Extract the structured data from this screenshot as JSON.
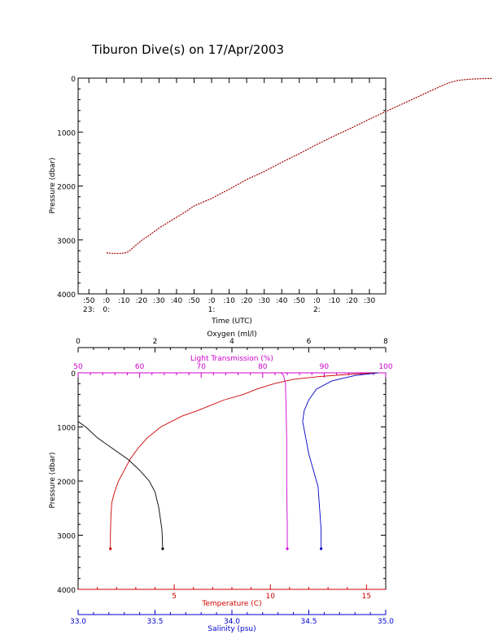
{
  "title": "Tiburon Dive(s) on 17/Apr/2003",
  "colors": {
    "axis": "#000000",
    "temperature": "#d00000",
    "salinity": "#0000cc",
    "light": "#cc00cc",
    "oxygen": "#000000",
    "track": "#a00000"
  },
  "chart_data": [
    {
      "type": "line",
      "ylabel": "Pressure (dbar)",
      "xlabel": "Time (UTC)",
      "ylim": [
        4000,
        0
      ],
      "y_ticks": [
        "0",
        "1000",
        "2000",
        "3000",
        "4000"
      ],
      "x_tick_minutes": [
        ":50",
        ":0",
        ":10",
        ":20",
        ":30",
        ":40",
        ":50",
        ":0",
        ":10",
        ":20",
        ":30",
        ":40",
        ":50",
        ":0",
        ":10",
        ":20",
        ":30"
      ],
      "x_tick_hours": [
        {
          "label": "23:",
          "index": 0
        },
        {
          "label": "0:",
          "index": 1
        },
        {
          "label": "1:",
          "index": 7
        },
        {
          "label": "2:",
          "index": 13
        }
      ],
      "series": [
        {
          "x_minutes_after_2350": [
            10,
            13,
            18,
            20,
            22,
            24,
            26,
            30,
            35,
            40,
            45,
            50,
            55,
            60,
            70,
            80,
            90,
            100,
            110,
            120,
            130,
            140,
            150,
            160,
            170,
            180,
            190,
            200,
            205,
            210,
            215,
            220,
            225,
            230
          ],
          "y": [
            3240,
            3250,
            3250,
            3245,
            3225,
            3180,
            3120,
            3010,
            2900,
            2780,
            2680,
            2580,
            2480,
            2370,
            2230,
            2060,
            1880,
            1730,
            1560,
            1400,
            1230,
            1070,
            920,
            760,
            610,
            460,
            310,
            160,
            90,
            45,
            25,
            15,
            8,
            5
          ]
        }
      ]
    },
    {
      "type": "line",
      "ylabel": "Pressure (dbar)",
      "ylim": [
        4000,
        0
      ],
      "y_ticks": [
        "0",
        "1000",
        "2000",
        "3000",
        "4000"
      ],
      "axes": {
        "oxygen": {
          "label": "Oxygen (ml/l)",
          "range": [
            0,
            8
          ],
          "ticks": [
            "0",
            "2",
            "4",
            "6",
            "8"
          ]
        },
        "light": {
          "label": "Light Transmission (%)",
          "range": [
            50,
            100
          ],
          "ticks": [
            "50",
            "60",
            "70",
            "80",
            "90",
            "100"
          ]
        },
        "temperature": {
          "label": "Temperature (C)",
          "range": [
            0,
            16
          ],
          "ticks": [
            "5",
            "10",
            "15"
          ],
          "tick_values": [
            5,
            10,
            15
          ]
        },
        "salinity": {
          "label": "Salinity (psu)",
          "range": [
            33.0,
            35.0
          ],
          "ticks": [
            "33.0",
            "33.5",
            "34.0",
            "34.5",
            "35.0"
          ]
        }
      },
      "series": [
        {
          "name": "Temperature",
          "axis": "temperature",
          "x": [
            15.5,
            14,
            12.5,
            11.2,
            10.2,
            9.3,
            8.6,
            7.6,
            6.2,
            5.4,
            4.3,
            3.6,
            3.1,
            2.7,
            2.4,
            2.1,
            1.9,
            1.75,
            1.7,
            1.68,
            1.68
          ],
          "y": [
            0,
            30,
            70,
            120,
            200,
            300,
            400,
            500,
            700,
            800,
            1000,
            1200,
            1400,
            1600,
            1800,
            2000,
            2200,
            2400,
            2700,
            3000,
            3250
          ]
        },
        {
          "name": "Salinity",
          "axis": "salinity",
          "x": [
            34.95,
            34.8,
            34.65,
            34.55,
            34.5,
            34.47,
            34.46,
            34.48,
            34.5,
            34.53,
            34.56,
            34.57,
            34.58,
            34.58
          ],
          "y": [
            0,
            50,
            150,
            300,
            500,
            700,
            900,
            1200,
            1500,
            1800,
            2100,
            2500,
            2900,
            3250
          ]
        },
        {
          "name": "Light Transmission",
          "axis": "light",
          "x": [
            83,
            83.4,
            83.7,
            83.8,
            83.9,
            83.9,
            84.0,
            84.0
          ],
          "y": [
            0,
            50,
            200,
            600,
            1200,
            2000,
            2800,
            3250
          ]
        },
        {
          "name": "Oxygen",
          "axis": "oxygen",
          "x": [
            0,
            0.2,
            0.5,
            0.9,
            1.3,
            1.6,
            1.85,
            2.0,
            2.1,
            2.18,
            2.2
          ],
          "y": [
            900,
            1000,
            1200,
            1400,
            1600,
            1800,
            2000,
            2200,
            2500,
            2900,
            3250
          ]
        }
      ]
    }
  ]
}
